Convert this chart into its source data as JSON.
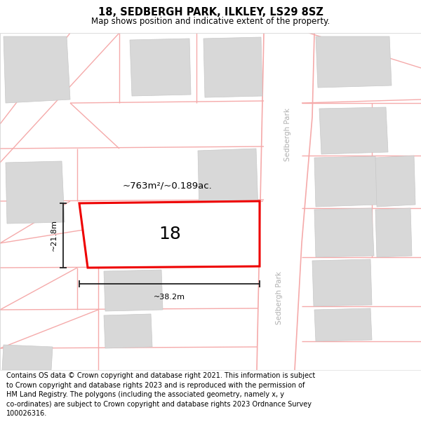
{
  "title": "18, SEDBERGH PARK, ILKLEY, LS29 8SZ",
  "subtitle": "Map shows position and indicative extent of the property.",
  "footer": "Contains OS data © Crown copyright and database right 2021. This information is subject\nto Crown copyright and database rights 2023 and is reproduced with the permission of\nHM Land Registry. The polygons (including the associated geometry, namely x, y\nco-ordinates) are subject to Crown copyright and database rights 2023 Ordnance Survey\n100026316.",
  "map_bg": "#ffffff",
  "plot_outline_color": "#ee0000",
  "neighbor_line_color": "#f5aaaa",
  "building_color": "#d8d8d8",
  "building_edge": "#c8c8c8",
  "road_label": "Sedbergh Park",
  "plot_label": "18",
  "area_label": "~763m²/~0.189ac.",
  "dim_h_label": "~21.8m",
  "dim_w_label": "~38.2m",
  "title_fontsize": 10.5,
  "subtitle_fontsize": 8.5,
  "footer_fontsize": 7.0,
  "road_label_color": "#b0b0b0",
  "dim_color": "#222222"
}
